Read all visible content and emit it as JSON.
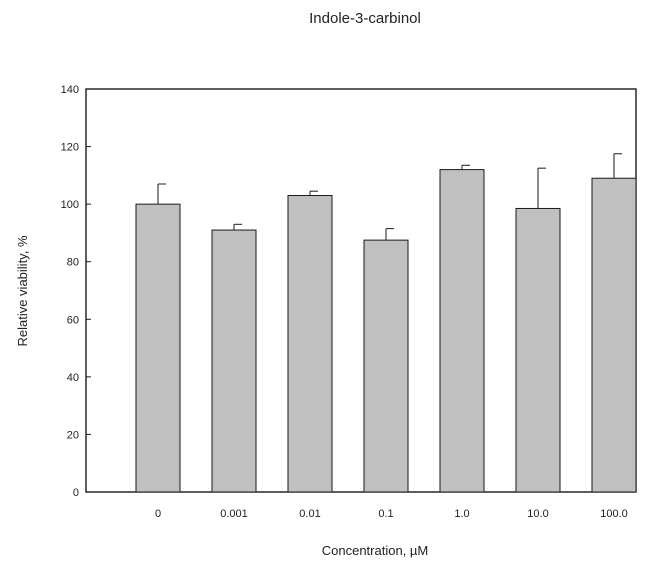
{
  "chart_data": {
    "type": "bar",
    "title": "Indole-3-carbinol",
    "xlabel": "Concentration, µM",
    "ylabel": "Relative viability, %",
    "categories": [
      "0",
      "0.001",
      "0.01",
      "0.1",
      "1.0",
      "10.0",
      "100.0"
    ],
    "values": [
      100,
      91,
      103,
      87.5,
      112,
      98.5,
      109
    ],
    "error_upper": [
      7,
      2,
      1.5,
      4,
      1.5,
      14,
      8.5
    ],
    "ylim": [
      0,
      140
    ],
    "yticks": [
      0,
      20,
      40,
      60,
      80,
      100,
      120,
      140
    ],
    "grid": false,
    "bar_color": "#c0c0c0",
    "edge_color": "#1a1a1a"
  }
}
